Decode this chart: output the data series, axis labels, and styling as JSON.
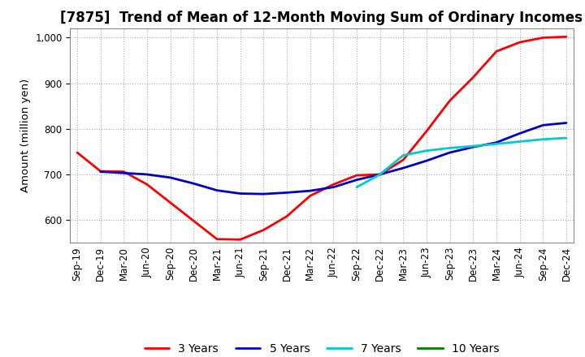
{
  "title": "[7875]  Trend of Mean of 12-Month Moving Sum of Ordinary Incomes",
  "ylabel": "Amount (million yen)",
  "x_labels": [
    "Sep-19",
    "Dec-19",
    "Mar-20",
    "Jun-20",
    "Sep-20",
    "Dec-20",
    "Mar-21",
    "Jun-21",
    "Sep-21",
    "Dec-21",
    "Mar-22",
    "Jun-22",
    "Sep-22",
    "Dec-22",
    "Mar-23",
    "Jun-23",
    "Sep-23",
    "Dec-23",
    "Mar-24",
    "Jun-24",
    "Sep-24",
    "Dec-24"
  ],
  "ylim": [
    550,
    1020
  ],
  "yticks": [
    600,
    700,
    800,
    900,
    1000
  ],
  "series": {
    "3 Years": {
      "color": "#FF0000",
      "linewidth": 2.0,
      "data": [
        748,
        707,
        706,
        678,
        638,
        598,
        558,
        557,
        578,
        608,
        653,
        678,
        698,
        700,
        732,
        795,
        862,
        913,
        970,
        990,
        1000,
        1002
      ]
    },
    "5 Years": {
      "color": "#0000CC",
      "linewidth": 2.0,
      "data": [
        null,
        706,
        703,
        700,
        693,
        680,
        665,
        658,
        657,
        660,
        664,
        672,
        688,
        700,
        714,
        730,
        748,
        760,
        770,
        790,
        808,
        813
      ]
    },
    "7 Years": {
      "color": "#00CCCC",
      "linewidth": 2.0,
      "data": [
        null,
        null,
        null,
        null,
        null,
        null,
        null,
        null,
        null,
        null,
        null,
        null,
        672,
        700,
        742,
        752,
        758,
        762,
        767,
        772,
        777,
        780
      ]
    },
    "10 Years": {
      "color": "#008000",
      "linewidth": 2.0,
      "data": [
        null,
        null,
        null,
        null,
        null,
        null,
        null,
        null,
        null,
        null,
        null,
        null,
        null,
        null,
        null,
        null,
        null,
        null,
        null,
        null,
        null,
        null
      ]
    }
  },
  "background_color": "#FFFFFF",
  "grid_color": "#AAAAAA",
  "title_fontsize": 12,
  "legend_fontsize": 10,
  "tick_fontsize": 8.5
}
